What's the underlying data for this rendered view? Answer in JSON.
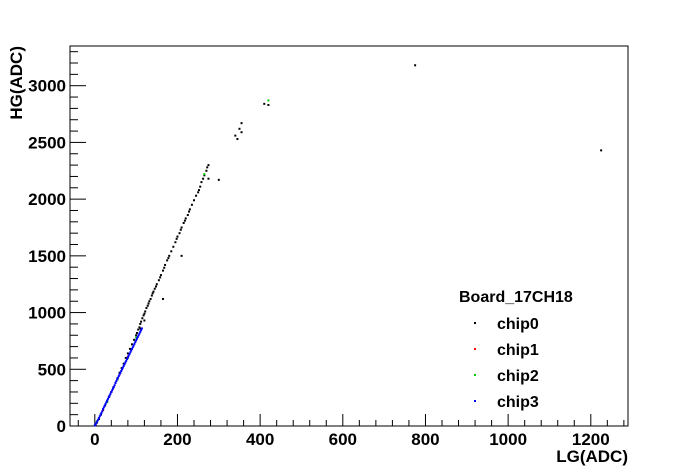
{
  "chart_data": {
    "type": "scatter",
    "title": "",
    "xlabel": "LG(ADC)",
    "ylabel": "HG(ADC)",
    "xlim": [
      -60,
      1290
    ],
    "ylim": [
      0,
      3350
    ],
    "x_ticks": [
      0,
      200,
      400,
      600,
      800,
      1000,
      1200
    ],
    "y_ticks": [
      0,
      500,
      1000,
      1500,
      2000,
      2500,
      3000
    ],
    "x_minor_step": 40,
    "y_minor_step": 100,
    "grid": false,
    "legend": {
      "title": "Board_17CH18",
      "placement": "bottom-right"
    },
    "series": [
      {
        "name": "chip0",
        "color": "#000000",
        "points": [
          [
            2,
            10
          ],
          [
            5,
            30
          ],
          [
            10,
            62
          ],
          [
            15,
            100
          ],
          [
            20,
            140
          ],
          [
            25,
            180
          ],
          [
            30,
            220
          ],
          [
            35,
            260
          ],
          [
            40,
            300
          ],
          [
            45,
            340
          ],
          [
            50,
            380
          ],
          [
            55,
            420
          ],
          [
            60,
            470
          ],
          [
            65,
            510
          ],
          [
            70,
            550
          ],
          [
            75,
            600
          ],
          [
            80,
            640
          ],
          [
            85,
            680
          ],
          [
            90,
            720
          ],
          [
            95,
            760
          ],
          [
            100,
            800
          ],
          [
            102,
            820
          ],
          [
            105,
            850
          ],
          [
            108,
            870
          ],
          [
            110,
            900
          ],
          [
            112,
            920
          ],
          [
            115,
            950
          ],
          [
            118,
            975
          ],
          [
            120,
            990
          ],
          [
            122,
            1010
          ],
          [
            125,
            1040
          ],
          [
            128,
            1060
          ],
          [
            130,
            1080
          ],
          [
            132,
            1100
          ],
          [
            135,
            1120
          ],
          [
            138,
            1150
          ],
          [
            140,
            1170
          ],
          [
            142,
            1185
          ],
          [
            145,
            1210
          ],
          [
            148,
            1230
          ],
          [
            150,
            1250
          ],
          [
            155,
            1285
          ],
          [
            158,
            1310
          ],
          [
            160,
            1330
          ],
          [
            165,
            1370
          ],
          [
            168,
            1395
          ],
          [
            170,
            1420
          ],
          [
            175,
            1460
          ],
          [
            178,
            1480
          ],
          [
            180,
            1500
          ],
          [
            185,
            1540
          ],
          [
            190,
            1580
          ],
          [
            195,
            1620
          ],
          [
            198,
            1650
          ],
          [
            200,
            1670
          ],
          [
            205,
            1700
          ],
          [
            208,
            1730
          ],
          [
            210,
            1750
          ],
          [
            215,
            1790
          ],
          [
            218,
            1810
          ],
          [
            220,
            1830
          ],
          [
            225,
            1860
          ],
          [
            228,
            1890
          ],
          [
            230,
            1910
          ],
          [
            235,
            1950
          ],
          [
            240,
            1990
          ],
          [
            245,
            2030
          ],
          [
            250,
            2060
          ],
          [
            252,
            2080
          ],
          [
            255,
            2110
          ],
          [
            258,
            2150
          ],
          [
            262,
            2180
          ],
          [
            265,
            2210
          ],
          [
            270,
            2250
          ],
          [
            272,
            2280
          ],
          [
            275,
            2300
          ],
          [
            120,
            930
          ],
          [
            110,
            860
          ],
          [
            165,
            1120
          ],
          [
            210,
            1500
          ],
          [
            275,
            2180
          ],
          [
            300,
            2170
          ],
          [
            340,
            2560
          ],
          [
            345,
            2530
          ],
          [
            350,
            2620
          ],
          [
            355,
            2670
          ],
          [
            355,
            2590
          ],
          [
            410,
            2840
          ],
          [
            420,
            2830
          ],
          [
            775,
            3180
          ],
          [
            1225,
            2430
          ]
        ]
      },
      {
        "name": "chip1",
        "color": "#ff0000",
        "points": [
          [
            20,
            145
          ],
          [
            40,
            300
          ],
          [
            60,
            455
          ],
          [
            80,
            610
          ]
        ]
      },
      {
        "name": "chip2",
        "color": "#00cc00",
        "points": [
          [
            5,
            40
          ],
          [
            30,
            210
          ],
          [
            55,
            410
          ],
          [
            80,
            600
          ],
          [
            100,
            780
          ],
          [
            265,
            2220
          ],
          [
            420,
            2870
          ]
        ]
      },
      {
        "name": "chip3",
        "color": "#0000ff",
        "points": [
          [
            0,
            5
          ],
          [
            2,
            15
          ],
          [
            4,
            28
          ],
          [
            6,
            42
          ],
          [
            8,
            55
          ],
          [
            10,
            70
          ],
          [
            12,
            85
          ],
          [
            14,
            100
          ],
          [
            16,
            115
          ],
          [
            18,
            130
          ],
          [
            20,
            150
          ],
          [
            22,
            165
          ],
          [
            24,
            180
          ],
          [
            26,
            195
          ],
          [
            28,
            210
          ],
          [
            30,
            225
          ],
          [
            32,
            240
          ],
          [
            34,
            255
          ],
          [
            36,
            270
          ],
          [
            38,
            285
          ],
          [
            40,
            300
          ],
          [
            42,
            315
          ],
          [
            44,
            330
          ],
          [
            46,
            345
          ],
          [
            48,
            360
          ],
          [
            50,
            380
          ],
          [
            52,
            395
          ],
          [
            54,
            410
          ],
          [
            56,
            425
          ],
          [
            58,
            440
          ],
          [
            60,
            455
          ],
          [
            62,
            470
          ],
          [
            64,
            485
          ],
          [
            66,
            500
          ],
          [
            68,
            515
          ],
          [
            70,
            530
          ],
          [
            72,
            545
          ],
          [
            74,
            560
          ],
          [
            76,
            575
          ],
          [
            78,
            590
          ],
          [
            80,
            605
          ],
          [
            82,
            620
          ],
          [
            84,
            635
          ],
          [
            86,
            650
          ],
          [
            88,
            665
          ],
          [
            90,
            680
          ],
          [
            92,
            695
          ],
          [
            94,
            710
          ],
          [
            96,
            725
          ],
          [
            98,
            740
          ],
          [
            100,
            755
          ],
          [
            102,
            770
          ],
          [
            104,
            785
          ],
          [
            106,
            800
          ],
          [
            108,
            815
          ],
          [
            110,
            830
          ],
          [
            112,
            845
          ],
          [
            114,
            860
          ]
        ]
      }
    ]
  }
}
